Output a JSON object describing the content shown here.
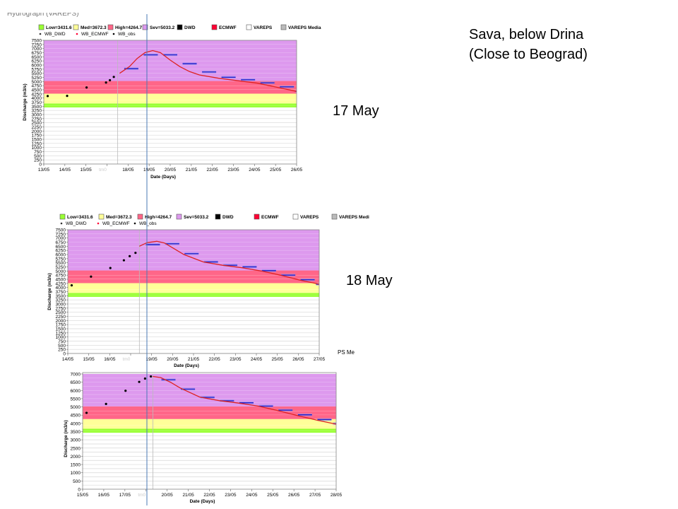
{
  "title_line1": "Sava, below Drina",
  "title_line2": "(Close to Beograd)",
  "top_clip_text": "Hydrograph (VAREPS)",
  "mid_clip_text": "PS Me",
  "colors": {
    "low": "#99ff33",
    "med": "#ffff99",
    "high": "#ff6688",
    "sev": "#dd99ee",
    "dwd": "#000000",
    "ecmwf": "#ff0033",
    "vareps": "#ffffff",
    "vareps_median": "#bbbbbb",
    "median_line": "#dd2222",
    "ens_bar": "#2222cc",
    "forecast_line": "#3355aa",
    "obs": "#000000"
  },
  "charts": [
    {
      "date_label": "17 May",
      "legend": [
        "Low=3431.6",
        "Med=3672.3",
        "High=4264.7",
        "Sev=5033.2",
        "DWD",
        "ECMWF",
        "VAREPS",
        "VAREPS Media"
      ],
      "legend2": [
        "WB_DWD",
        "WB_ECMWF",
        "WB_obs"
      ],
      "thresholds": {
        "low": 3431.6,
        "med": 3672.3,
        "high": 4264.7,
        "sev": 5033.2
      },
      "ylabel": "Discharge (m3/s)",
      "xlabel": "Date (Days)",
      "x_ticks": [
        "13/05",
        "14/05",
        "15/05",
        "",
        "18/05",
        "19/05",
        "20/05",
        "21/05",
        "22/05",
        "23/05",
        "24/05",
        "25/05",
        "26/05"
      ],
      "faded_tick": "tm0",
      "y_ticks": [
        0,
        250,
        500,
        750,
        1000,
        1250,
        1500,
        1750,
        2000,
        2250,
        2500,
        2750,
        3000,
        3250,
        3500,
        3750,
        4000,
        4250,
        4500,
        4750,
        5000,
        5250,
        5500,
        5750,
        6000,
        6250,
        6500,
        6750,
        7000,
        7250,
        7500
      ],
      "y_labels": [
        0,
        250,
        500,
        750,
        1000,
        1250,
        1500,
        1750,
        2000,
        2250,
        2500,
        2750,
        3000,
        3250,
        3500,
        3750,
        4000,
        4250,
        4500,
        4750,
        5000,
        5250,
        5500,
        5750,
        6000,
        6250,
        6500,
        6750,
        7000,
        7250,
        7500
      ],
      "y_label_step": 250,
      "x_days": [
        13,
        26
      ],
      "obs": [
        [
          13.2,
          4120
        ],
        [
          14.2,
          4130
        ],
        [
          15.2,
          4640
        ],
        [
          16.2,
          4940
        ],
        [
          16.4,
          5080
        ],
        [
          16.6,
          5280
        ]
      ],
      "median_line": [
        [
          16.9,
          5500
        ],
        [
          17.4,
          5900
        ],
        [
          17.8,
          6400
        ],
        [
          18.2,
          6750
        ],
        [
          18.6,
          6880
        ],
        [
          19.0,
          6750
        ],
        [
          19.5,
          6300
        ],
        [
          20.0,
          5900
        ],
        [
          20.5,
          5600
        ],
        [
          21.0,
          5400
        ],
        [
          22.0,
          5200
        ],
        [
          23.0,
          5050
        ],
        [
          24.0,
          4900
        ],
        [
          25.0,
          4650
        ],
        [
          26.0,
          4400
        ],
        [
          26.6,
          4300
        ]
      ],
      "ens_bars": [
        [
          17.5,
          5780
        ],
        [
          18.5,
          6620
        ],
        [
          19.5,
          6620
        ],
        [
          20.5,
          6080
        ],
        [
          21.5,
          5580
        ],
        [
          22.5,
          5260
        ],
        [
          23.5,
          5110
        ],
        [
          24.5,
          4920
        ],
        [
          25.5,
          4680
        ],
        [
          26.3,
          4400
        ]
      ],
      "forecast_day": 18.6,
      "start_day": 16.8,
      "ylim": [
        0,
        7500
      ]
    },
    {
      "date_label": "18 May",
      "legend": [
        "Low=3431.6",
        "Med=3672.3",
        "High=4264.7",
        "Sev=5033.2",
        "DWD",
        "ECMWF",
        "VAREPS",
        "VAREPS Medi"
      ],
      "legend2": [
        "WB_DWD",
        "WB_ECMWF",
        "WB_obs"
      ],
      "thresholds": {
        "low": 3431.6,
        "med": 3672.3,
        "high": 4264.7,
        "sev": 5033.2
      },
      "ylabel": "Discharge (m3/s)",
      "xlabel": "Date (Days)",
      "x_ticks": [
        "14/05",
        "15/05",
        "16/05",
        "",
        "19/05",
        "20/05",
        "21/05",
        "22/05",
        "23/05",
        "24/05",
        "25/05",
        "26/05",
        "27/05"
      ],
      "faded_tick": "tm0",
      "y_ticks": [
        0,
        250,
        500,
        750,
        1000,
        1250,
        1500,
        1750,
        2000,
        2250,
        2500,
        2750,
        3000,
        3250,
        3500,
        3750,
        4000,
        4250,
        4500,
        4750,
        5000,
        5250,
        5500,
        5750,
        6000,
        6250,
        6500,
        6750,
        7000,
        7250,
        7500
      ],
      "y_labels": [
        0,
        250,
        500,
        750,
        1000,
        1250,
        1500,
        1750,
        2000,
        2250,
        2500,
        2750,
        3000,
        3250,
        3500,
        3750,
        4000,
        4250,
        4500,
        4750,
        5000,
        5250,
        5500,
        5750,
        6000,
        6250,
        6500,
        6750,
        7000,
        7250,
        7500
      ],
      "y_label_step": 250,
      "x_days": [
        14,
        27
      ],
      "obs": [
        [
          14.2,
          4130
        ],
        [
          15.2,
          4660
        ],
        [
          16.2,
          5180
        ],
        [
          16.9,
          5650
        ],
        [
          17.2,
          5900
        ],
        [
          17.5,
          6100
        ]
      ],
      "median_line": [
        [
          17.7,
          6500
        ],
        [
          18.1,
          6720
        ],
        [
          18.6,
          6800
        ],
        [
          19.0,
          6700
        ],
        [
          19.5,
          6350
        ],
        [
          20.0,
          6000
        ],
        [
          21.0,
          5550
        ],
        [
          22.0,
          5350
        ],
        [
          23.0,
          5200
        ],
        [
          24.0,
          5000
        ],
        [
          25.0,
          4750
        ],
        [
          26.0,
          4450
        ],
        [
          27.0,
          4200
        ],
        [
          27.6,
          4100
        ]
      ],
      "ens_bars": [
        [
          18.4,
          6600
        ],
        [
          19.4,
          6650
        ],
        [
          20.4,
          6050
        ],
        [
          21.4,
          5550
        ],
        [
          22.4,
          5350
        ],
        [
          23.4,
          5250
        ],
        [
          24.4,
          5020
        ],
        [
          25.4,
          4750
        ],
        [
          26.4,
          4470
        ],
        [
          27.2,
          4200
        ]
      ],
      "forecast_day": 18.6,
      "start_day": 17.7,
      "ylim": [
        0,
        7500
      ]
    },
    {
      "date_label": "",
      "legend": [],
      "legend2": [],
      "thresholds": {
        "low": 3431.6,
        "med": 3672.3,
        "high": 4264.7,
        "sev": 5033.2
      },
      "ylabel": "Discharge (m3/s)",
      "xlabel": "Date (Days)",
      "x_ticks": [
        "15/05",
        "16/05",
        "17/05",
        "",
        "20/05",
        "21/05",
        "22/05",
        "23/05",
        "24/05",
        "25/05",
        "26/05",
        "27/05",
        "28/05"
      ],
      "faded_tick": "tm0",
      "y_ticks": [
        0,
        250,
        500,
        750,
        1000,
        1250,
        1500,
        1750,
        2000,
        2250,
        2500,
        2750,
        3000,
        3250,
        3500,
        3750,
        4000,
        4250,
        4500,
        4750,
        5000,
        5250,
        5500,
        5750,
        6000,
        6250,
        6500,
        6750,
        7000
      ],
      "y_labels": [
        0,
        500,
        1000,
        1500,
        2000,
        2500,
        3000,
        3500,
        4000,
        4500,
        5000,
        5500,
        6000,
        6500,
        7000
      ],
      "y_label_step": 500,
      "x_days": [
        15,
        28
      ],
      "obs": [
        [
          15.2,
          4640
        ],
        [
          16.2,
          5180
        ],
        [
          17.2,
          5980
        ],
        [
          17.9,
          6520
        ],
        [
          18.2,
          6720
        ],
        [
          18.5,
          6850
        ]
      ],
      "median_line": [
        [
          18.6,
          6850
        ],
        [
          19.0,
          6780
        ],
        [
          19.5,
          6500
        ],
        [
          20.0,
          6150
        ],
        [
          21.0,
          5600
        ],
        [
          22.0,
          5380
        ],
        [
          23.0,
          5230
        ],
        [
          24.0,
          5050
        ],
        [
          25.0,
          4780
        ],
        [
          26.0,
          4480
        ],
        [
          27.0,
          4200
        ],
        [
          28.0,
          3950
        ],
        [
          28.4,
          3820
        ]
      ],
      "ens_bars": [
        [
          19.4,
          6650
        ],
        [
          20.4,
          6080
        ],
        [
          21.4,
          5580
        ],
        [
          22.4,
          5370
        ],
        [
          23.4,
          5250
        ],
        [
          24.4,
          5050
        ],
        [
          25.4,
          4800
        ],
        [
          26.4,
          4520
        ],
        [
          27.4,
          4230
        ],
        [
          28.2,
          3980
        ]
      ],
      "forecast_day": 18.6,
      "start_day": 18.6,
      "ylim": [
        0,
        7000
      ]
    }
  ]
}
